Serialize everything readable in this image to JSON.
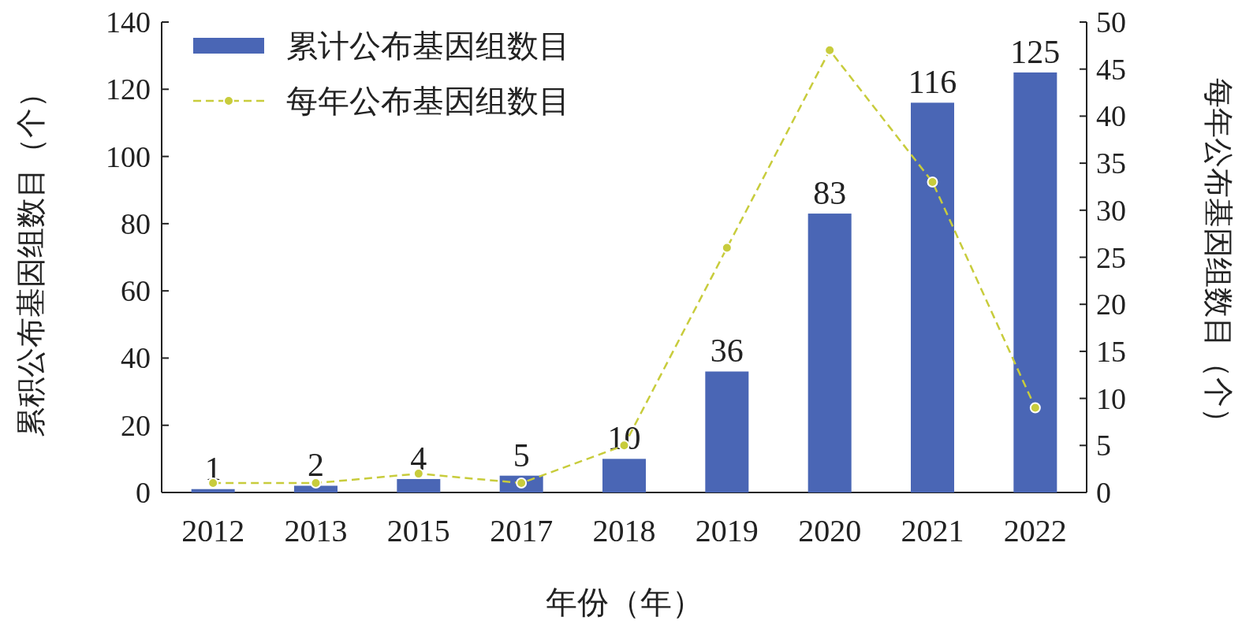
{
  "chart_data": {
    "type": "bar",
    "categories": [
      "2012",
      "2013",
      "2015",
      "2017",
      "2018",
      "2019",
      "2020",
      "2021",
      "2022"
    ],
    "xlabel": "年份（年）",
    "ylabel": "累积公布基因组数目（个）",
    "y2label": "每年公布基因组数目（个）",
    "series": [
      {
        "name": "累计公布基因组数目",
        "color": "#4a66b5",
        "values": [
          1,
          2,
          4,
          5,
          10,
          36,
          83,
          116,
          125
        ],
        "data_labels": true
      },
      {
        "name": "每年公布基因组数目",
        "type": "line",
        "axis": "y2",
        "color": "#c8cc3c",
        "marker": "circle",
        "line_style": "dashed",
        "values": [
          1,
          1,
          2,
          1,
          5,
          26,
          47,
          33,
          9
        ]
      }
    ],
    "ylim": [
      0,
      140
    ],
    "yticks": [
      0,
      20,
      40,
      60,
      80,
      100,
      120,
      140
    ],
    "y2lim": [
      0,
      50
    ],
    "y2ticks": [
      0,
      5,
      10,
      15,
      20,
      25,
      30,
      35,
      40,
      45,
      50
    ],
    "legend": "top left"
  }
}
